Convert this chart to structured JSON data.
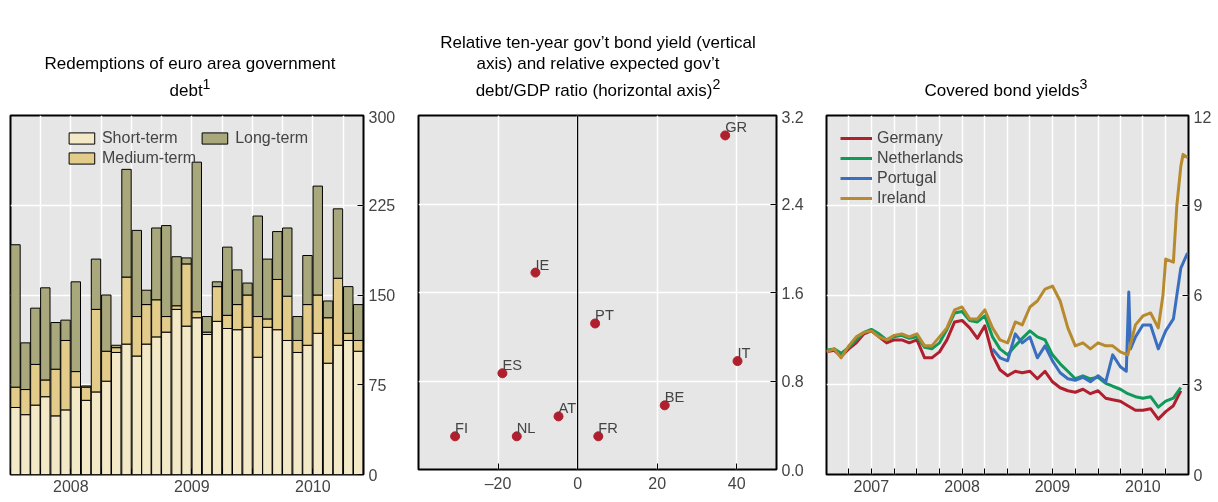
{
  "chart_data": [
    {
      "type": "bar",
      "title": "Redemptions of euro area government debt$^{1}$",
      "stacked": true,
      "legend": "top",
      "grid": true,
      "x": [
        "2008-01-16",
        "2008-02-15",
        "2008-03-16",
        "2008-04-15",
        "2008-05-16",
        "2008-06-15",
        "2008-07-16",
        "2008-08-16",
        "2008-09-15",
        "2008-10-16",
        "2008-11-15",
        "2008-12-16",
        "2009-01-16",
        "2009-02-14",
        "2009-03-16",
        "2009-04-15",
        "2009-05-16",
        "2009-06-15",
        "2009-07-16",
        "2009-08-16",
        "2009-09-15",
        "2009-10-16",
        "2009-11-15",
        "2009-12-16",
        "2010-01-16",
        "2010-02-14",
        "2010-03-16",
        "2010-04-15",
        "2010-05-16",
        "2010-06-15",
        "2010-07-16",
        "2010-08-16",
        "2010-09-15",
        "2010-10-16",
        "2010-11-15"
      ],
      "xlim": [
        "2008-01",
        "2010-12"
      ],
      "xticks": [
        {
          "value": "2008-01",
          "label": null
        },
        {
          "value": "2008-04",
          "label": null
        },
        {
          "value": "2008-07",
          "label": "2008"
        },
        {
          "value": "2008-10",
          "label": null
        },
        {
          "value": "2009-01",
          "label": null
        },
        {
          "value": "2009-04",
          "label": null
        },
        {
          "value": "2009-07",
          "label": "2009"
        },
        {
          "value": "2009-10",
          "label": null
        },
        {
          "value": "2010-01",
          "label": null
        },
        {
          "value": "2010-04",
          "label": null
        },
        {
          "value": "2010-07",
          "label": "2010"
        },
        {
          "value": "2010-10",
          "label": null
        }
      ],
      "ylim": [
        0,
        300
      ],
      "yticks": [
        0,
        75,
        150,
        225,
        300
      ],
      "series": [
        {
          "name": "Short-term",
          "color": "#f3e9c6",
          "values": [
            56,
            50,
            58,
            65,
            49,
            54,
            73,
            62,
            69,
            78,
            102,
            109,
            99,
            109,
            115,
            119,
            138,
            124,
            131,
            117,
            128,
            122,
            121,
            123,
            98,
            123,
            121,
            112,
            102,
            108,
            118,
            93,
            108,
            112,
            103
          ]
        },
        {
          "name": "Medium-term",
          "color": "#e3cc8a",
          "values": [
            17,
            21,
            34,
            14,
            39,
            58,
            13,
            11,
            69,
            25,
            4,
            56,
            33,
            33,
            31,
            13,
            3,
            52,
            5,
            2,
            29,
            11,
            21,
            27,
            34,
            7,
            42,
            37,
            10,
            34,
            32,
            38,
            56,
            6,
            9
          ]
        },
        {
          "name": "Long-term",
          "color": "#a8a87c",
          "values": [
            119,
            39,
            47,
            77,
            39,
            17,
            75,
            1,
            42,
            47,
            2,
            90,
            72,
            12,
            60,
            76,
            41,
            5,
            125,
            13,
            4,
            57,
            29,
            10,
            84,
            50,
            40,
            57,
            20,
            41,
            91,
            14,
            58,
            39,
            30
          ]
        }
      ]
    },
    {
      "type": "scatter",
      "title": "Relative ten-year gov’t bond yield (vertical axis) and relative expected gov’t debt/GDP ratio (horizontal axis)$^{2}$",
      "grid": true,
      "marker": "circle",
      "x": [
        37.1,
        -10.6,
        4.4,
        -18.9,
        40.2,
        21.9,
        -4.8,
        -30.8,
        -15.3,
        5.2
      ],
      "xlim": [
        -40,
        50
      ],
      "xticks": [
        {
          "value": -20,
          "label": "–20"
        },
        0,
        20,
        40
      ],
      "ylim": [
        0,
        3.2
      ],
      "yticks": [
        {
          "value": 0,
          "label": "0.0"
        },
        {
          "value": 0.8,
          "label": "0.8"
        },
        {
          "value": 1.6,
          "label": "1.6"
        },
        {
          "value": 2.4,
          "label": "2.4"
        },
        {
          "value": 3.2,
          "label": "3.2"
        }
      ],
      "series": [
        {
          "color": "#b01f2e",
          "values": [
            3.02,
            1.78,
            1.32,
            0.87,
            0.98,
            0.58,
            0.48,
            0.3,
            0.3,
            0.3
          ]
        }
      ],
      "ref_lines": [
        {
          "axis": "x",
          "value": 0,
          "label": null,
          "color": "#000000"
        }
      ],
      "annotations": [
        {
          "text": "GR",
          "x": 37.1,
          "y": 3.02
        },
        {
          "text": "IE",
          "x": -10.6,
          "y": 1.78
        },
        {
          "text": "PT",
          "x": 4.4,
          "y": 1.32
        },
        {
          "text": "ES",
          "x": -18.9,
          "y": 0.87
        },
        {
          "text": "IT",
          "x": 40.2,
          "y": 0.98
        },
        {
          "text": "BE",
          "x": 21.9,
          "y": 0.58
        },
        {
          "text": "AT",
          "x": -4.8,
          "y": 0.48
        },
        {
          "text": "FI",
          "x": -30.8,
          "y": 0.3
        },
        {
          "text": "NL",
          "x": -15.3,
          "y": 0.3
        },
        {
          "text": "FR",
          "x": 5.2,
          "y": 0.3
        }
      ]
    },
    {
      "type": "line",
      "title": "Covered bond yields$^{3}$",
      "legend": "top left",
      "grid": true,
      "line_style": "solid",
      "x": [
        "2007-01",
        "2007-02",
        "2007-03",
        "2007-04",
        "2007-05",
        "2007-06",
        "2007-07",
        "2007-08",
        "2007-09",
        "2007-10",
        "2007-11",
        "2007-12",
        "2008-01",
        "2008-02",
        "2008-03",
        "2008-04",
        "2008-05",
        "2008-06",
        "2008-07",
        "2008-08",
        "2008-09",
        "2008-10",
        "2008-11",
        "2008-12",
        "2009-01",
        "2009-02",
        "2009-03",
        "2009-04",
        "2009-05",
        "2009-06",
        "2009-07",
        "2009-08",
        "2009-09",
        "2009-10",
        "2009-11",
        "2009-12",
        "2010-01",
        "2010-02",
        "2010-03",
        "2010-04",
        "2010-05",
        "2010-06",
        "2010-07",
        "2010-08",
        "2010-09",
        "2010-10",
        "2010-11",
        "2010-12"
      ],
      "xlim": [
        "2007-01",
        "2011-01"
      ],
      "xticks": [
        {
          "value": "2007-04",
          "label": null
        },
        {
          "value": "2007-07",
          "label": "2007"
        },
        {
          "value": "2007-10",
          "label": null
        },
        {
          "value": "2008-01",
          "label": null
        },
        {
          "value": "2008-04",
          "label": null
        },
        {
          "value": "2008-07",
          "label": "2008"
        },
        {
          "value": "2008-10",
          "label": null
        },
        {
          "value": "2009-01",
          "label": null
        },
        {
          "value": "2009-04",
          "label": null
        },
        {
          "value": "2009-07",
          "label": "2009"
        },
        {
          "value": "2009-10",
          "label": null
        },
        {
          "value": "2010-01",
          "label": null
        },
        {
          "value": "2010-04",
          "label": null
        },
        {
          "value": "2010-07",
          "label": "2010"
        },
        {
          "value": "2010-10",
          "label": null
        }
      ],
      "ylim": [
        0,
        12
      ],
      "yticks": [
        0,
        3,
        6,
        9,
        12
      ],
      "series": [
        {
          "name": "Germany",
          "color": "#b01f2e",
          "values": [
            4.1,
            4.15,
            3.95,
            4.2,
            4.4,
            4.7,
            4.8,
            4.6,
            4.4,
            4.5,
            4.5,
            4.4,
            4.5,
            3.9,
            3.9,
            4.1,
            4.5,
            5.1,
            5.15,
            4.9,
            4.55,
            4.97,
            4.0,
            3.5,
            3.3,
            3.45,
            3.4,
            3.45,
            3.2,
            3.45,
            3.1,
            2.9,
            2.8,
            2.75,
            2.85,
            2.7,
            2.8,
            2.55,
            2.5,
            2.45,
            2.3,
            2.15,
            2.15,
            2.2,
            1.85,
            2.1,
            2.3,
            2.8
          ]
        },
        {
          "name": "Netherlands",
          "color": "#0f9a5a",
          "values": [
            4.15,
            4.2,
            4.05,
            4.25,
            4.5,
            4.75,
            4.85,
            4.7,
            4.5,
            4.6,
            4.65,
            4.55,
            4.6,
            4.25,
            4.2,
            4.4,
            4.85,
            5.4,
            5.45,
            5.15,
            5.1,
            5.3,
            4.6,
            4.2,
            4.0,
            4.3,
            4.55,
            4.8,
            4.6,
            4.5,
            4.0,
            3.7,
            3.45,
            3.2,
            3.3,
            3.2,
            3.25,
            3.05,
            2.95,
            2.85,
            2.7,
            2.6,
            2.55,
            2.6,
            2.25,
            2.45,
            2.55,
            2.9
          ]
        },
        {
          "name": "Portugal",
          "color": "#3a6fbf",
          "x": [
            "2008-11",
            "2008-12",
            "2009-01",
            "2009-02",
            "2009-03",
            "2009-04",
            "2009-05",
            "2009-06",
            "2009-07",
            "2009-08",
            "2009-09",
            "2009-10",
            "2009-11",
            "2009-12",
            "2010-01",
            "2010-02",
            "2010-03",
            "2010-04",
            "2010-04-25",
            "2010-05-05",
            "2010-05-12",
            "2010-06",
            "2010-07",
            "2010-08",
            "2010-09",
            "2010-10",
            "2010-11",
            "2010-12",
            "2010-12-28"
          ],
          "values": [
            4.2,
            3.9,
            3.8,
            4.7,
            4.4,
            4.6,
            3.9,
            4.3,
            3.8,
            3.4,
            3.2,
            3.15,
            3.25,
            3.1,
            3.3,
            3.1,
            4.0,
            3.6,
            3.45,
            6.1,
            4.2,
            4.6,
            5.0,
            5.0,
            4.2,
            4.8,
            5.2,
            6.9,
            7.4
          ]
        },
        {
          "name": "Ireland",
          "color": "#b88a30",
          "x": [
            "2007-01",
            "2007-02",
            "2007-03",
            "2007-04",
            "2007-05",
            "2007-06",
            "2007-07",
            "2007-08",
            "2007-09",
            "2007-10",
            "2007-11",
            "2007-12",
            "2008-01",
            "2008-02",
            "2008-03",
            "2008-04",
            "2008-05",
            "2008-06",
            "2008-07",
            "2008-08",
            "2008-09",
            "2008-10",
            "2008-11",
            "2008-12",
            "2009-01",
            "2009-02",
            "2009-03",
            "2009-04",
            "2009-05",
            "2009-06",
            "2009-07",
            "2009-08",
            "2009-09",
            "2009-10",
            "2009-11",
            "2009-12",
            "2010-01",
            "2010-02",
            "2010-03",
            "2010-04",
            "2010-05",
            "2010-06",
            "2010-07",
            "2010-08",
            "2010-09",
            "2010-09-20",
            "2010-10",
            "2010-11",
            "2010-11-15",
            "2010-12",
            "2010-12-10",
            "2010-12-28"
          ],
          "values": [
            4.1,
            4.2,
            3.9,
            4.3,
            4.6,
            4.75,
            4.8,
            4.6,
            4.5,
            4.65,
            4.7,
            4.6,
            4.7,
            4.3,
            4.3,
            4.6,
            4.9,
            5.5,
            5.6,
            5.2,
            5.2,
            5.5,
            4.9,
            4.5,
            4.4,
            5.1,
            5.0,
            5.6,
            5.8,
            6.2,
            6.3,
            5.8,
            4.9,
            4.3,
            4.4,
            4.2,
            4.4,
            4.3,
            4.3,
            4.1,
            4.0,
            5.0,
            5.3,
            5.4,
            4.9,
            6.0,
            7.2,
            7.1,
            9.0,
            10.3,
            10.7,
            10.6
          ]
        }
      ]
    }
  ]
}
